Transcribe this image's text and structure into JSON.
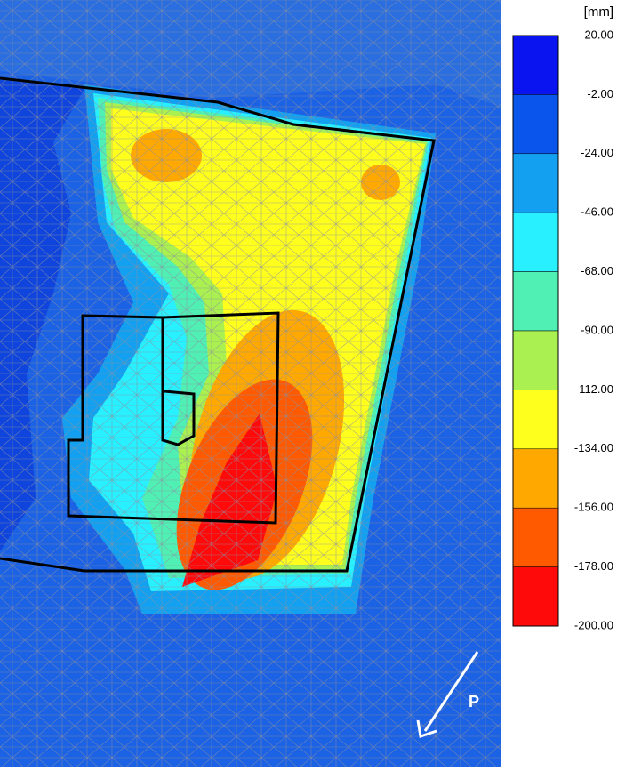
{
  "legend": {
    "unit": "[mm]",
    "labels": [
      "20.00",
      "-2.00",
      "-24.00",
      "-46.00",
      "-68.00",
      "-90.00",
      "-112.00",
      "-134.00",
      "-156.00",
      "-178.00",
      "-200.00"
    ],
    "colors": [
      "#0a14f0",
      "#0a55eb",
      "#14a0f0",
      "#28f0ff",
      "#50f0b4",
      "#aaf050",
      "#ffff1e",
      "#ffa800",
      "#ff5a00",
      "#ff0a0a"
    ]
  },
  "annotation": "P"
}
